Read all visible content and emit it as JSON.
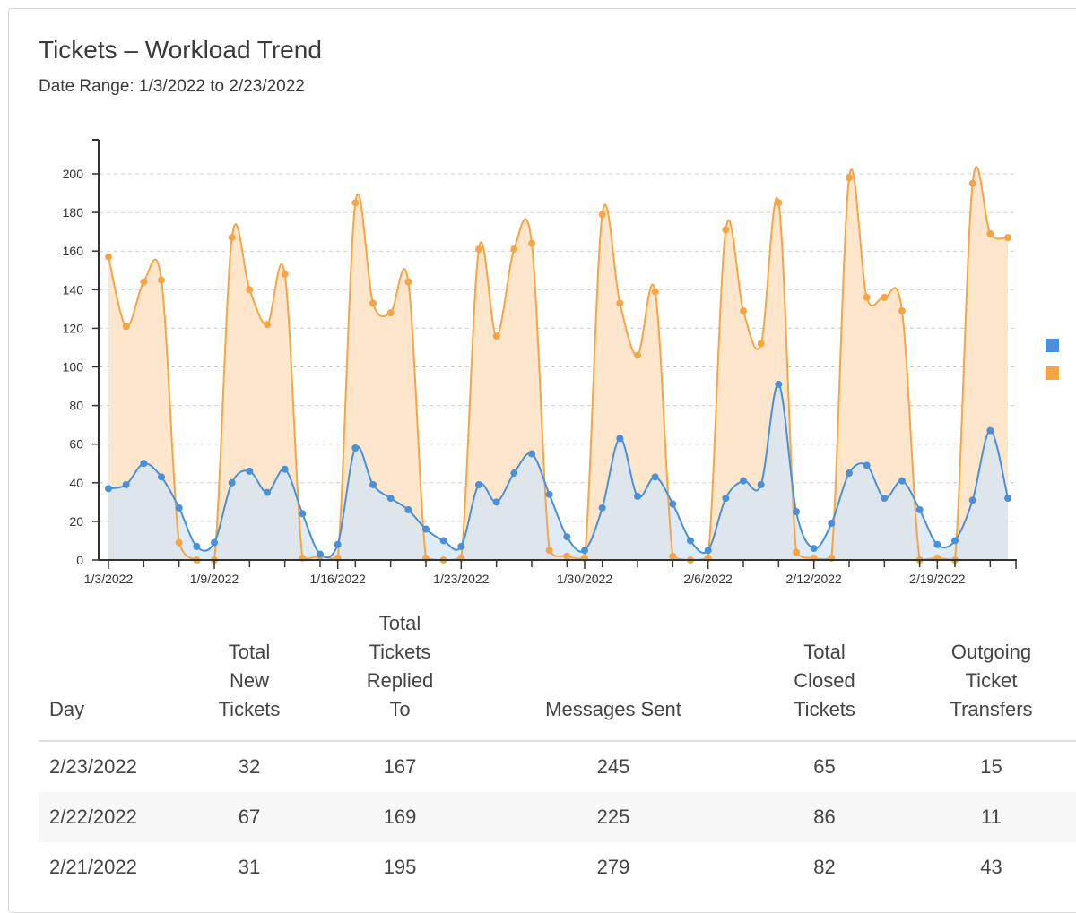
{
  "title": "Tickets – Workload Trend",
  "subtitle": "Date Range: 1/3/2022 to 2/23/2022",
  "chart_data": {
    "type": "area",
    "x": [
      "1/3/2022",
      "1/4/2022",
      "1/5/2022",
      "1/6/2022",
      "1/7/2022",
      "1/8/2022",
      "1/9/2022",
      "1/10/2022",
      "1/11/2022",
      "1/12/2022",
      "1/13/2022",
      "1/14/2022",
      "1/15/2022",
      "1/16/2022",
      "1/17/2022",
      "1/18/2022",
      "1/19/2022",
      "1/20/2022",
      "1/21/2022",
      "1/22/2022",
      "1/23/2022",
      "1/24/2022",
      "1/25/2022",
      "1/26/2022",
      "1/27/2022",
      "1/28/2022",
      "1/29/2022",
      "1/30/2022",
      "1/31/2022",
      "2/1/2022",
      "2/2/2022",
      "2/3/2022",
      "2/4/2022",
      "2/5/2022",
      "2/6/2022",
      "2/7/2022",
      "2/8/2022",
      "2/9/2022",
      "2/10/2022",
      "2/11/2022",
      "2/12/2022",
      "2/13/2022",
      "2/14/2022",
      "2/15/2022",
      "2/16/2022",
      "2/17/2022",
      "2/18/2022",
      "2/19/2022",
      "2/20/2022",
      "2/21/2022",
      "2/22/2022",
      "2/23/2022"
    ],
    "tick_labels": [
      "1/3/2022",
      "1/9/2022",
      "1/16/2022",
      "1/23/2022",
      "1/30/2022",
      "2/6/2022",
      "2/12/2022",
      "2/19/2022"
    ],
    "series": [
      {
        "color": "#4a90d9",
        "fill": "#d3e4f5",
        "values": [
          37,
          39,
          50,
          43,
          27,
          7,
          9,
          40,
          46,
          35,
          47,
          24,
          3,
          8,
          58,
          39,
          32,
          26,
          16,
          10,
          7,
          39,
          30,
          45,
          55,
          34,
          12,
          5,
          27,
          63,
          33,
          43,
          29,
          10,
          5,
          32,
          41,
          39,
          91,
          25,
          6,
          19,
          45,
          49,
          32,
          41,
          26,
          8,
          10,
          31,
          67,
          32
        ]
      },
      {
        "color": "#f5a545",
        "fill": "#fde6cb",
        "values": [
          157,
          121,
          144,
          145,
          9,
          0,
          0,
          167,
          140,
          122,
          148,
          1,
          2,
          1,
          185,
          133,
          128,
          144,
          1,
          0,
          1,
          161,
          116,
          161,
          164,
          5,
          2,
          1,
          179,
          133,
          106,
          139,
          2,
          0,
          1,
          171,
          129,
          112,
          185,
          4,
          1,
          1,
          198,
          136,
          136,
          129,
          0,
          1,
          0,
          195,
          169,
          167
        ]
      }
    ],
    "ylim": [
      0,
      210
    ],
    "yticks": [
      0,
      20,
      40,
      60,
      80,
      100,
      120,
      140,
      160,
      180,
      200
    ],
    "grid": true,
    "legend": "right"
  },
  "table": {
    "headers": [
      "Day",
      "Total\nNew\nTickets",
      "Total\nTickets\nReplied\nTo",
      "Messages Sent",
      "Total\nClosed\nTickets",
      "Outgoing\nTicket\nTransfers"
    ],
    "rows": [
      [
        "2/23/2022",
        "32",
        "167",
        "245",
        "65",
        "15"
      ],
      [
        "2/22/2022",
        "67",
        "169",
        "225",
        "86",
        "11"
      ],
      [
        "2/21/2022",
        "31",
        "195",
        "279",
        "82",
        "43"
      ]
    ]
  }
}
